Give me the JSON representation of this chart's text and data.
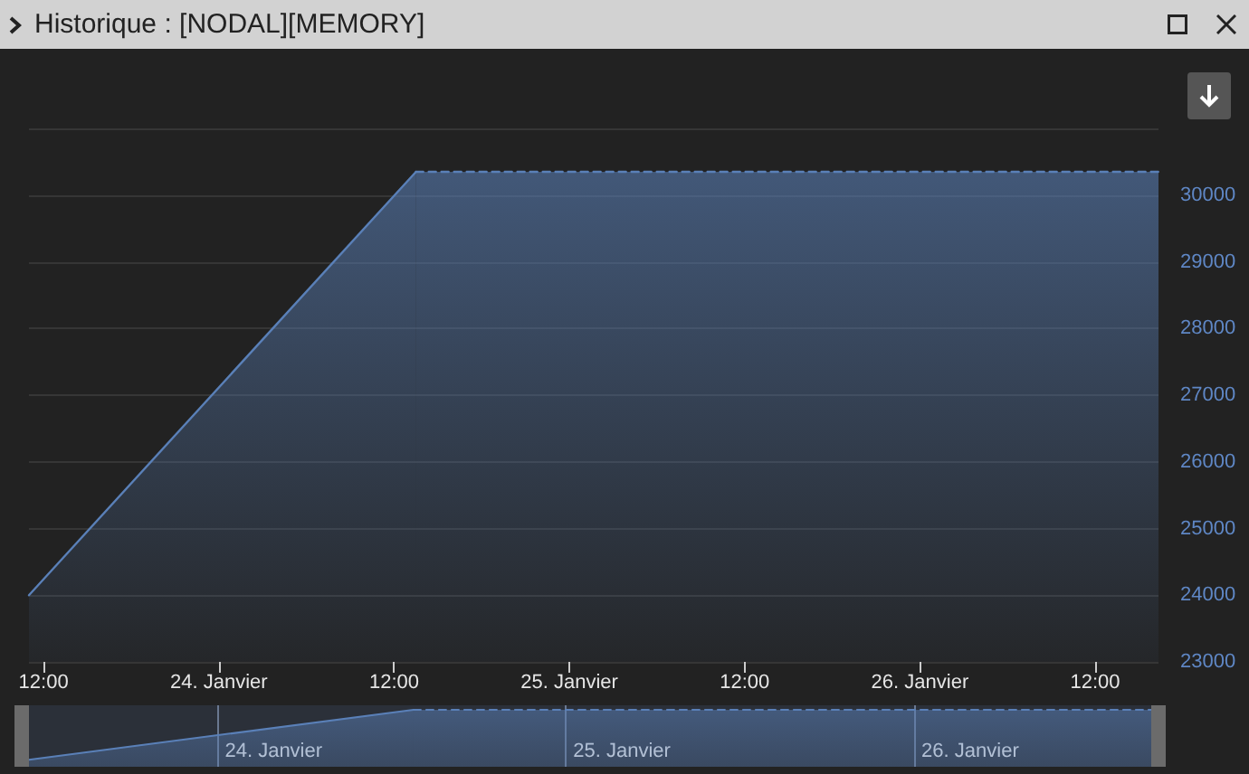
{
  "chart_data": {
    "type": "area",
    "title": "Historique : [NODAL][MEMORY]",
    "xlim": [
      "--01-23T11:00",
      "--01-26T16:20"
    ],
    "xticks": [
      {
        "value": "--01-23T12:00",
        "label": "12:00"
      },
      {
        "value": "--01-24",
        "label": "24. Janvier"
      },
      {
        "value": "--01-24T12:00",
        "label": "12:00"
      },
      {
        "value": "--01-25",
        "label": "25. Janvier"
      },
      {
        "value": "--01-25T12:00",
        "label": "12:00"
      },
      {
        "value": "--01-26",
        "label": "26. Janvier"
      },
      {
        "value": "--01-26T12:00",
        "label": "12:00"
      }
    ],
    "ylim": [
      23000,
      31000
    ],
    "yticks": [
      23000,
      24000,
      25000,
      26000,
      27000,
      28000,
      29000,
      30000,
      {
        "value": 31000,
        "label": null
      }
    ],
    "grid": "y",
    "marker": "none",
    "series": [
      {
        "color": "#5a80b8",
        "line_style": "solid",
        "x": [
          "--01-23T11:00",
          "--01-24T13:30"
        ],
        "values": [
          24000,
          30350
        ]
      },
      {
        "color": "#5a80b8",
        "line_style": "dashed",
        "x": [
          "--01-24T13:30",
          "--01-26T16:20"
        ],
        "values": [
          30350,
          30350
        ]
      }
    ]
  }
}
